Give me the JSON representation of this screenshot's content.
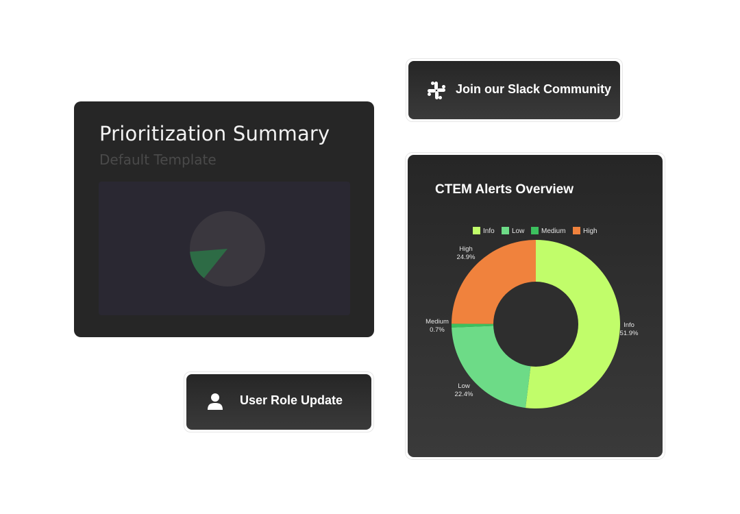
{
  "prioritization": {
    "title": "Prioritization Summary",
    "subtitle": "Default Template",
    "mini_pie": {
      "slice_fraction": 0.13,
      "slice_color": "#2d6b45",
      "base_color": "#3a373e"
    }
  },
  "slack_button": {
    "label": "Join our Slack Community",
    "icon": "slack-icon"
  },
  "role_button": {
    "label": "User Role Update",
    "icon": "user-icon"
  },
  "ctem": {
    "title": "CTEM  Alerts Overview"
  },
  "chart_data": {
    "type": "pie",
    "donut": true,
    "title": "CTEM  Alerts Overview",
    "legend_position": "top",
    "legend": [
      "Info",
      "Low",
      "Medium",
      "High"
    ],
    "series": [
      {
        "name": "Info",
        "value": 51.9,
        "label": "51.9%",
        "color": "#c1fd6a"
      },
      {
        "name": "Low",
        "value": 22.4,
        "label": "22.4%",
        "color": "#6ddb87"
      },
      {
        "name": "Medium",
        "value": 0.7,
        "label": "0.7%",
        "color": "#3cc05e"
      },
      {
        "name": "High",
        "value": 24.9,
        "label": "24.9%",
        "color": "#f0823d"
      }
    ],
    "hole_color": "#2e2e2e"
  }
}
